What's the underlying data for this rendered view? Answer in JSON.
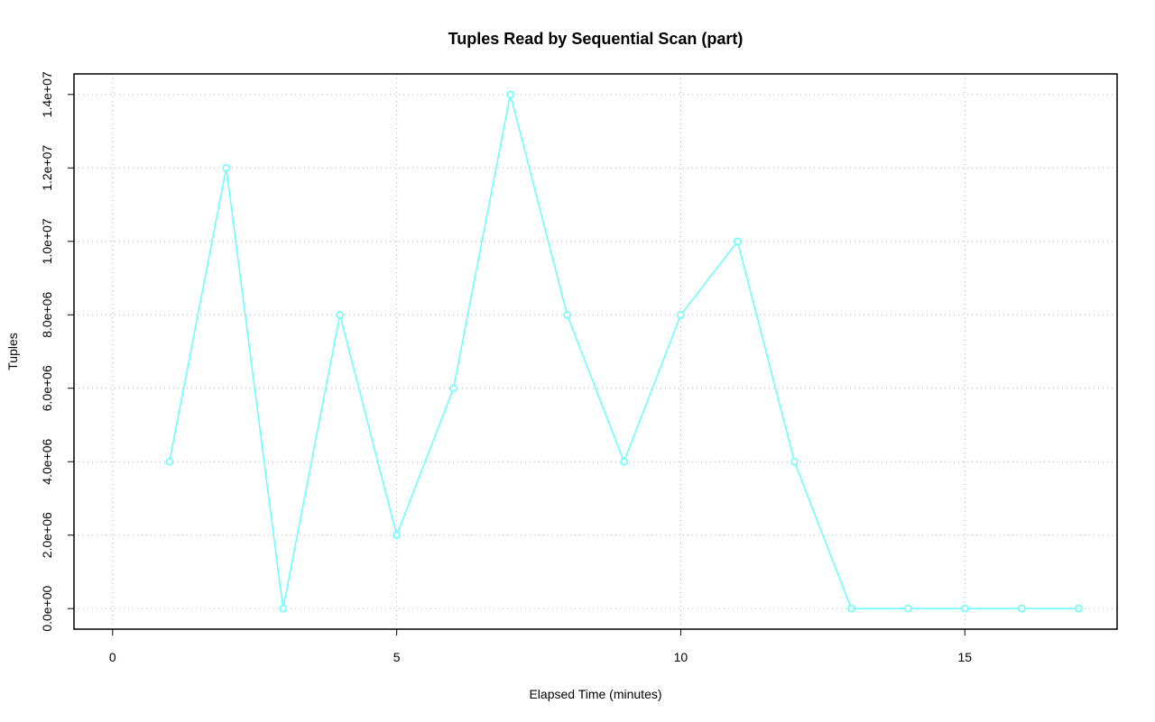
{
  "chart_data": {
    "type": "line",
    "title": "Tuples Read by Sequential Scan (part)",
    "x_label": "Elapsed Time (minutes)",
    "y_label": "Tuples",
    "x": [
      1,
      2,
      3,
      4,
      5,
      6,
      7,
      8,
      9,
      10,
      11,
      12,
      13,
      14,
      15,
      16,
      17
    ],
    "series": [
      {
        "name": "Tuples",
        "color": "#66ffff",
        "values": [
          4000000,
          12000000,
          0,
          8000000,
          2000000,
          6000000,
          14000000,
          8000000,
          4000000,
          8000000,
          10000000,
          4000000,
          0,
          0,
          0,
          0,
          0
        ]
      }
    ],
    "xlim": [
      -0.68,
      17.68
    ],
    "xticks": [
      0,
      5,
      10,
      15
    ],
    "ylim": [
      -560000,
      14560000
    ],
    "yticks": [
      {
        "value": 0,
        "label": "0.0e+00"
      },
      {
        "value": 2000000,
        "label": "2.0e+06"
      },
      {
        "value": 4000000,
        "label": "4.0e+06"
      },
      {
        "value": 6000000,
        "label": "6.0e+06"
      },
      {
        "value": 8000000,
        "label": "8.0e+06"
      },
      {
        "value": 10000000,
        "label": "1.0e+07"
      },
      {
        "value": 12000000,
        "label": "1.2e+07"
      },
      {
        "value": 14000000,
        "label": "1.4e+07"
      }
    ],
    "grid": true
  }
}
